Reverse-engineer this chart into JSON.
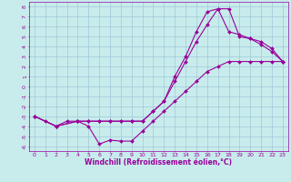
{
  "xlabel": "Windchill (Refroidissement éolien,°C)",
  "background_color": "#c8ecec",
  "grid_color": "#a0c8d8",
  "line_color": "#990099",
  "xlim": [
    -0.5,
    23.5
  ],
  "ylim": [
    -6.5,
    8.5
  ],
  "xticks": [
    0,
    1,
    2,
    3,
    4,
    5,
    6,
    7,
    8,
    9,
    10,
    11,
    12,
    13,
    14,
    15,
    16,
    17,
    18,
    19,
    20,
    21,
    22,
    23
  ],
  "yticks": [
    -6,
    -5,
    -4,
    -3,
    -2,
    -1,
    0,
    1,
    2,
    3,
    4,
    5,
    6,
    7,
    8
  ],
  "line1_x": [
    0,
    1,
    2,
    3,
    4,
    5,
    6,
    7,
    8,
    9,
    10,
    11,
    12,
    13,
    14,
    15,
    16,
    17,
    18,
    19,
    20,
    21,
    22,
    23
  ],
  "line1_y": [
    -3,
    -3.5,
    -4,
    -3.5,
    -3.5,
    -4,
    -5.8,
    -5.4,
    -5.5,
    -5.5,
    -4.5,
    -3.5,
    -2.5,
    -1.5,
    -0.5,
    0.5,
    1.5,
    2.0,
    2.5,
    2.5,
    2.5,
    2.5,
    2.5,
    2.5
  ],
  "line2_x": [
    0,
    2,
    4,
    5,
    6,
    7,
    8,
    9,
    10,
    11,
    12,
    13,
    14,
    15,
    16,
    17,
    18,
    19,
    20,
    21,
    22,
    23
  ],
  "line2_y": [
    -3,
    -4,
    -3.5,
    -3.5,
    -3.5,
    -3.5,
    -3.5,
    -3.5,
    -3.5,
    -2.5,
    -1.5,
    0.5,
    2.5,
    4.5,
    6.2,
    7.8,
    7.8,
    5.0,
    4.8,
    4.5,
    3.8,
    2.5
  ],
  "line3_x": [
    0,
    2,
    4,
    5,
    6,
    7,
    8,
    9,
    10,
    11,
    12,
    13,
    14,
    15,
    16,
    17,
    18,
    19,
    20,
    21,
    22,
    23
  ],
  "line3_y": [
    -3,
    -4,
    -3.5,
    -3.5,
    -3.5,
    -3.5,
    -3.5,
    -3.5,
    -3.5,
    -2.5,
    -1.5,
    1.0,
    3.0,
    5.5,
    7.5,
    7.8,
    5.5,
    5.2,
    4.8,
    4.2,
    3.5,
    2.5
  ],
  "tick_fontsize": 4.5,
  "xlabel_fontsize": 5.5,
  "marker": "D",
  "marker_size": 2.0,
  "line_width": 0.8
}
